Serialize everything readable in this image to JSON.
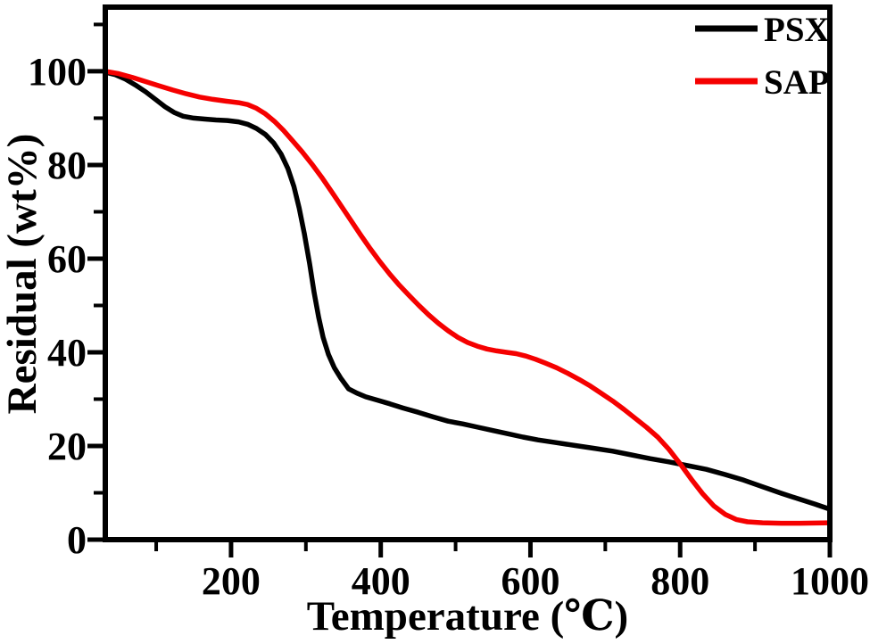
{
  "figure": {
    "background": "#ffffff",
    "border_color": "#000000"
  },
  "chart_data": {
    "type": "line",
    "title": "",
    "xlabel": "Temperature (℃)",
    "ylabel": "Residual (wt%)",
    "xlim": [
      32,
      1000
    ],
    "ylim": [
      0,
      113.7
    ],
    "x_major_ticks": [
      200,
      400,
      600,
      800,
      1000
    ],
    "x_minor_ticks": [
      100,
      300,
      500,
      700,
      900
    ],
    "y_major_ticks": [
      0,
      20,
      40,
      60,
      80,
      100
    ],
    "y_minor_ticks": [
      10,
      30,
      50,
      70,
      90,
      110
    ],
    "grid": false,
    "legend_position": "top-right-inside",
    "series": [
      {
        "name": "PSX",
        "color": "#000000",
        "points": [
          [
            32,
            99.8
          ],
          [
            45,
            99.3
          ],
          [
            58,
            98.4
          ],
          [
            72,
            97.1
          ],
          [
            86,
            95.6
          ],
          [
            100,
            93.9
          ],
          [
            112,
            92.4
          ],
          [
            124,
            91.2
          ],
          [
            136,
            90.4
          ],
          [
            150,
            90.0
          ],
          [
            165,
            89.8
          ],
          [
            180,
            89.6
          ],
          [
            195,
            89.5
          ],
          [
            210,
            89.2
          ],
          [
            222,
            88.7
          ],
          [
            234,
            87.8
          ],
          [
            246,
            86.5
          ],
          [
            257,
            84.7
          ],
          [
            267,
            82.3
          ],
          [
            276,
            79.2
          ],
          [
            284,
            75.4
          ],
          [
            291,
            70.8
          ],
          [
            298,
            65.3
          ],
          [
            305,
            58.9
          ],
          [
            311,
            52.8
          ],
          [
            317,
            47.5
          ],
          [
            323,
            43.2
          ],
          [
            330,
            39.6
          ],
          [
            338,
            36.7
          ],
          [
            347,
            34.4
          ],
          [
            357,
            32.2
          ],
          [
            368,
            31.3
          ],
          [
            380,
            30.5
          ],
          [
            395,
            29.8
          ],
          [
            412,
            29.0
          ],
          [
            430,
            28.1
          ],
          [
            450,
            27.2
          ],
          [
            470,
            26.2
          ],
          [
            490,
            25.3
          ],
          [
            510,
            24.7
          ],
          [
            530,
            24.0
          ],
          [
            550,
            23.3
          ],
          [
            570,
            22.6
          ],
          [
            590,
            21.9
          ],
          [
            610,
            21.3
          ],
          [
            635,
            20.7
          ],
          [
            660,
            20.1
          ],
          [
            685,
            19.5
          ],
          [
            710,
            18.9
          ],
          [
            735,
            18.1
          ],
          [
            760,
            17.3
          ],
          [
            785,
            16.6
          ],
          [
            810,
            15.8
          ],
          [
            835,
            15.0
          ],
          [
            860,
            13.9
          ],
          [
            885,
            12.7
          ],
          [
            910,
            11.3
          ],
          [
            935,
            9.9
          ],
          [
            960,
            8.6
          ],
          [
            980,
            7.6
          ],
          [
            1000,
            6.5
          ]
        ]
      },
      {
        "name": "SAP",
        "color": "#f50000",
        "points": [
          [
            32,
            100
          ],
          [
            50,
            99.5
          ],
          [
            68,
            98.7
          ],
          [
            86,
            97.8
          ],
          [
            104,
            96.9
          ],
          [
            122,
            96.0
          ],
          [
            140,
            95.2
          ],
          [
            158,
            94.5
          ],
          [
            176,
            94.0
          ],
          [
            194,
            93.6
          ],
          [
            210,
            93.3
          ],
          [
            222,
            92.9
          ],
          [
            234,
            92.1
          ],
          [
            246,
            90.9
          ],
          [
            258,
            89.3
          ],
          [
            270,
            87.4
          ],
          [
            282,
            85.2
          ],
          [
            295,
            82.8
          ],
          [
            308,
            80.2
          ],
          [
            321,
            77.4
          ],
          [
            334,
            74.4
          ],
          [
            347,
            71.3
          ],
          [
            360,
            68.2
          ],
          [
            373,
            65.1
          ],
          [
            386,
            62.1
          ],
          [
            399,
            59.3
          ],
          [
            412,
            56.7
          ],
          [
            425,
            54.3
          ],
          [
            438,
            52.1
          ],
          [
            451,
            50.0
          ],
          [
            464,
            48.0
          ],
          [
            477,
            46.2
          ],
          [
            490,
            44.6
          ],
          [
            503,
            43.2
          ],
          [
            516,
            42.1
          ],
          [
            529,
            41.3
          ],
          [
            542,
            40.7
          ],
          [
            555,
            40.3
          ],
          [
            568,
            40.0
          ],
          [
            581,
            39.7
          ],
          [
            594,
            39.2
          ],
          [
            607,
            38.5
          ],
          [
            620,
            37.7
          ],
          [
            635,
            36.7
          ],
          [
            650,
            35.5
          ],
          [
            665,
            34.2
          ],
          [
            680,
            32.8
          ],
          [
            695,
            31.2
          ],
          [
            710,
            29.6
          ],
          [
            725,
            27.8
          ],
          [
            740,
            25.9
          ],
          [
            755,
            24.0
          ],
          [
            770,
            21.9
          ],
          [
            785,
            19.3
          ],
          [
            800,
            16.2
          ],
          [
            815,
            12.9
          ],
          [
            830,
            9.8
          ],
          [
            845,
            7.2
          ],
          [
            860,
            5.4
          ],
          [
            875,
            4.3
          ],
          [
            890,
            3.8
          ],
          [
            910,
            3.6
          ],
          [
            935,
            3.5
          ],
          [
            960,
            3.5
          ],
          [
            1000,
            3.6
          ]
        ]
      }
    ]
  }
}
